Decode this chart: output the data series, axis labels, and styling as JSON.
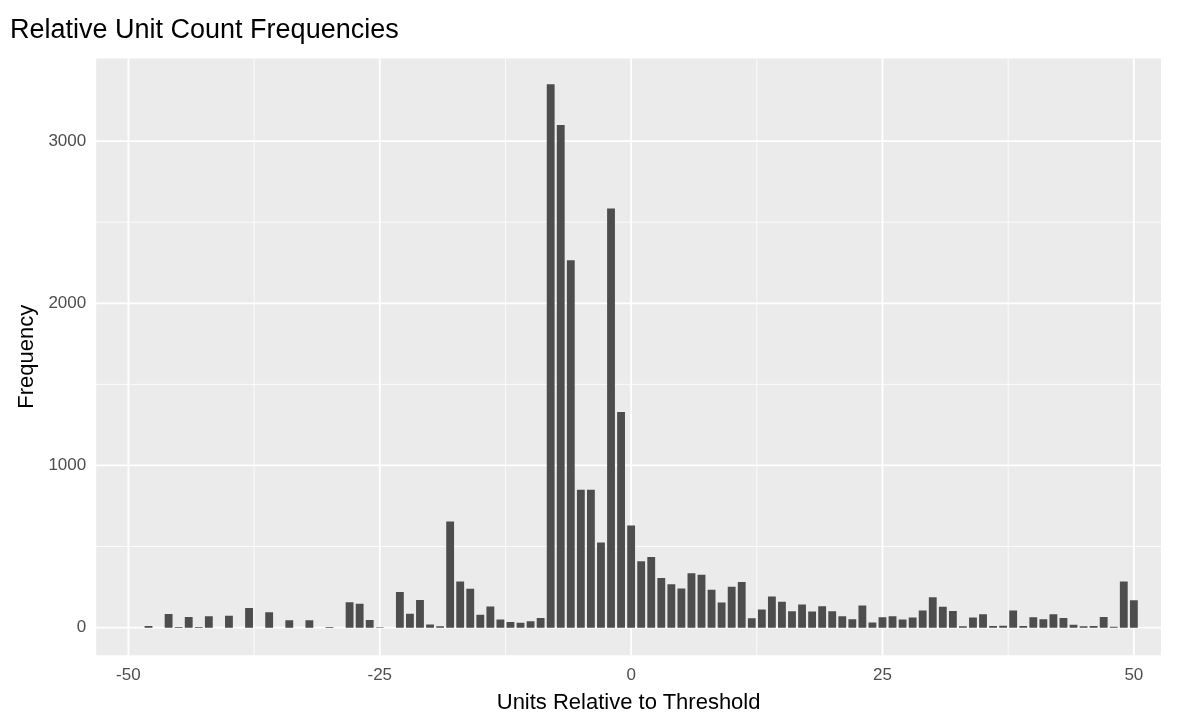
{
  "chart_data": {
    "type": "histogram",
    "title": "Relative Unit Count Frequencies",
    "xlabel": "Units Relative to Threshold",
    "ylabel": "Frequency",
    "color": "#4d4d4d",
    "bins": [
      -48.5,
      -47.5,
      -46.5,
      -45.5,
      -44.5,
      -43.5,
      -42.5,
      -41.5,
      -40.5,
      -39.5,
      -38.5,
      -37.5,
      -36.5,
      -35.5,
      -34.5,
      -33.5,
      -32.5,
      -31.5,
      -30.5,
      -29.5,
      -28.5,
      -27.5,
      -26.5,
      -25.5,
      -24.5,
      -23.5,
      -22.5,
      -21.5,
      -20.5,
      -19.5,
      -18.5,
      -17.5,
      -16.5,
      -15.5,
      -14.5,
      -13.5,
      -12.5,
      -11.5,
      -10.5,
      -9.5,
      -8.5,
      -7.5,
      -6.5,
      -5.5,
      -4.5,
      -3.5,
      -2.5,
      -1.5,
      -0.5,
      0.5,
      1.5,
      2.5,
      3.5,
      4.5,
      5.5,
      6.5,
      7.5,
      8.5,
      9.5,
      10.5,
      11.5,
      12.5,
      13.5,
      14.5,
      15.5,
      16.5,
      17.5,
      18.5,
      19.5,
      20.5,
      21.5,
      22.5,
      23.5,
      24.5,
      25.5,
      26.5,
      27.5,
      28.5,
      29.5,
      30.5,
      31.5,
      32.5,
      33.5,
      34.5,
      35.5,
      36.5,
      37.5,
      38.5,
      39.5,
      40.5,
      41.5,
      42.5,
      43.5,
      44.5,
      45.5,
      46.5,
      47.5,
      48.5,
      49.5,
      50.5
    ],
    "values": [
      10,
      0,
      84,
      4,
      66,
      4,
      70,
      0,
      74,
      0,
      121,
      0,
      95,
      0,
      45,
      0,
      45,
      0,
      4,
      0,
      156,
      148,
      47,
      3,
      0,
      220,
      85,
      170,
      20,
      8,
      655,
      285,
      240,
      80,
      130,
      50,
      35,
      30,
      40,
      60,
      3350,
      3100,
      2265,
      850,
      850,
      525,
      2585,
      1330,
      630,
      410,
      435,
      306,
      267,
      242,
      335,
      326,
      233,
      155,
      252,
      281,
      58,
      112,
      192,
      159,
      101,
      143,
      99,
      132,
      101,
      70,
      52,
      136,
      31,
      64,
      70,
      50,
      62,
      105,
      187,
      128,
      103,
      8,
      62,
      82,
      10,
      12,
      105,
      10,
      64,
      51,
      82,
      60,
      18,
      8,
      10,
      66,
      6,
      284,
      169
    ],
    "xlim": [
      -53.2,
      52.7
    ],
    "xticks": [
      -50,
      -25,
      0,
      25,
      50
    ],
    "ylim": [
      -170,
      3510
    ],
    "yticks": [
      0,
      1000,
      2000,
      3000
    ],
    "grid": true,
    "legend": false
  }
}
